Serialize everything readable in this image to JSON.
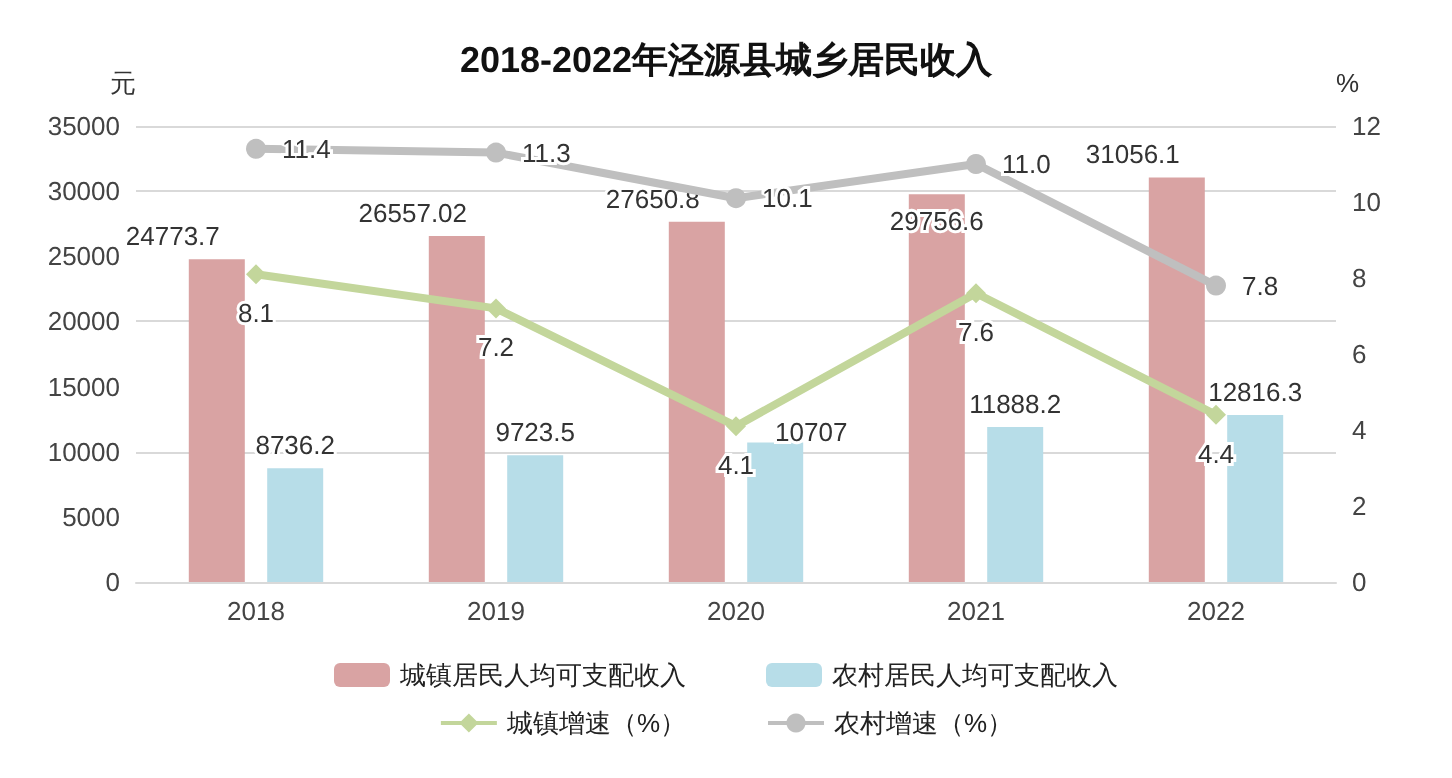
{
  "chart_data": {
    "type": "bar",
    "title": "2018-2022年泾源县城乡居民收入",
    "ylabel": "元",
    "y2label": "%",
    "categories": [
      "2018",
      "2019",
      "2020",
      "2021",
      "2022"
    ],
    "series": [
      {
        "name": "城镇居民人均可支配收入",
        "color": "#d9a3a3",
        "values": [
          24773.7,
          26557.02,
          27650.8,
          29756.6,
          31056.1
        ],
        "value_labels": [
          "24773.7",
          "26557.02",
          "27650.8",
          "29756.6",
          "31056.1"
        ]
      },
      {
        "name": "农村居民人均可支配收入",
        "color": "#b7dde8",
        "values": [
          8736.2,
          9723.5,
          10707,
          11888.2,
          12816.3
        ],
        "value_labels": [
          "8736.2",
          "9723.5",
          "10707",
          "11888.2",
          "12816.3"
        ]
      },
      {
        "name": "城镇增速（%）",
        "type": "line",
        "axis": "y2",
        "marker": "diamond",
        "color": "#c3d69b",
        "values": [
          8.1,
          7.2,
          4.1,
          7.6,
          4.4
        ],
        "value_labels": [
          "8.1",
          "7.2",
          "4.1",
          "7.6",
          "4.4"
        ]
      },
      {
        "name": "农村增速（%）",
        "type": "line",
        "axis": "y2",
        "marker": "circle",
        "color": "#bfbfbf",
        "values": [
          11.4,
          11.3,
          10.1,
          11.0,
          7.8
        ],
        "value_labels": [
          "11.4",
          "11.3",
          "10.1",
          "11.0",
          "7.8"
        ]
      }
    ],
    "ylim": [
      0,
      35000
    ],
    "yticks": [
      0,
      5000,
      10000,
      15000,
      20000,
      25000,
      30000,
      35000
    ],
    "y2lim": [
      0,
      12
    ],
    "y2ticks": [
      0,
      2,
      4,
      6,
      8,
      10,
      12
    ],
    "grid": "y",
    "legend": "bottom"
  }
}
